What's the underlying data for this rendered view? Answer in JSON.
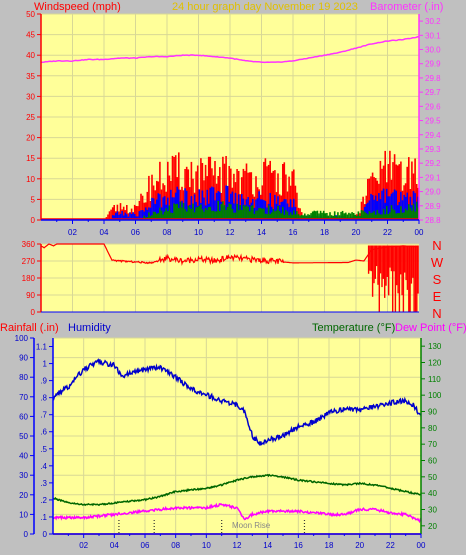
{
  "header": {
    "windspeed_label": "Windspeed (mph)",
    "title": "24 hour graph day   November 19 2023",
    "barometer_label": "Barometer (.in)"
  },
  "footer": {
    "rainfall_label": "Rainfall (.in)",
    "humidity_label": "Humidity",
    "temperature_label": "Temperature (°F)",
    "dewpoint_label": "Dew Point (°F)",
    "moonrise_label": "Moon Rise"
  },
  "colors": {
    "panel_bg": "#ffff99",
    "grid": "#d8d896",
    "windspeed": "#ff0000",
    "gust_mid": "#0000ff",
    "gust_low": "#008000",
    "barometer": "#ff33ff",
    "humidity": "#0000cc",
    "temperature": "#006600",
    "dewpoint": "#ff00ff",
    "rain_axis": "#0000ff",
    "temp_axis": "#008000",
    "title": "#e0c000"
  },
  "chart_data": [
    {
      "type": "bar",
      "name": "wind-barometer",
      "x_ticks": [
        "02",
        "04",
        "06",
        "08",
        "10",
        "12",
        "14",
        "16",
        "18",
        "20",
        "22",
        "00"
      ],
      "xlim": [
        0,
        24
      ],
      "y_left": {
        "label": "Windspeed (mph)",
        "ticks": [
          0,
          5,
          10,
          15,
          20,
          25,
          30,
          35,
          40,
          45,
          50
        ],
        "ylim": [
          0,
          50
        ]
      },
      "y_right": {
        "label": "Barometer (.in)",
        "ticks": [
          28.8,
          28.9,
          29.0,
          29.1,
          29.2,
          29.3,
          29.4,
          29.5,
          29.6,
          29.7,
          29.8,
          29.9,
          30.0,
          30.1,
          30.2
        ],
        "ylim": [
          28.8,
          30.25
        ]
      },
      "wind_max": [
        [
          0,
          0
        ],
        [
          4,
          0
        ],
        [
          4.5,
          3
        ],
        [
          5,
          4
        ],
        [
          6,
          3
        ],
        [
          6.5,
          7
        ],
        [
          7,
          11
        ],
        [
          8,
          13
        ],
        [
          9,
          14
        ],
        [
          10,
          13
        ],
        [
          11,
          13
        ],
        [
          12,
          14
        ],
        [
          13,
          12
        ],
        [
          14,
          13
        ],
        [
          15,
          12
        ],
        [
          16,
          12
        ],
        [
          16.3,
          3
        ],
        [
          16.8,
          0
        ],
        [
          19.8,
          0
        ],
        [
          20.2,
          3
        ],
        [
          21,
          12
        ],
        [
          22,
          15
        ],
        [
          23,
          12
        ],
        [
          24,
          16
        ]
      ],
      "wind_mid": [
        [
          4.5,
          1.5
        ],
        [
          5,
          2
        ],
        [
          6,
          1.5
        ],
        [
          6.5,
          3
        ],
        [
          7,
          5
        ],
        [
          8,
          7
        ],
        [
          9,
          7
        ],
        [
          10,
          7
        ],
        [
          11,
          7
        ],
        [
          12,
          7
        ],
        [
          13,
          6
        ],
        [
          14,
          6
        ],
        [
          15,
          5
        ],
        [
          16,
          5
        ],
        [
          16.3,
          1
        ],
        [
          20.2,
          1
        ],
        [
          21,
          6
        ],
        [
          22,
          8
        ],
        [
          23,
          6
        ],
        [
          24,
          8
        ]
      ],
      "wind_low": [
        [
          6.5,
          1
        ],
        [
          7,
          2
        ],
        [
          8,
          3
        ],
        [
          9,
          4
        ],
        [
          10,
          4
        ],
        [
          11,
          4
        ],
        [
          12,
          4
        ],
        [
          13,
          3
        ],
        [
          14,
          3
        ],
        [
          15,
          3
        ],
        [
          16,
          2
        ],
        [
          21,
          2
        ],
        [
          22,
          3
        ],
        [
          23,
          3
        ],
        [
          24,
          4
        ]
      ],
      "barometer": [
        [
          0,
          29.91
        ],
        [
          1,
          29.92
        ],
        [
          2,
          29.92
        ],
        [
          3,
          29.93
        ],
        [
          4,
          29.93
        ],
        [
          5,
          29.94
        ],
        [
          6,
          29.94
        ],
        [
          7,
          29.95
        ],
        [
          8,
          29.95
        ],
        [
          9,
          29.96
        ],
        [
          10,
          29.96
        ],
        [
          11,
          29.95
        ],
        [
          12,
          29.94
        ],
        [
          13,
          29.92
        ],
        [
          14,
          29.91
        ],
        [
          15,
          29.91
        ],
        [
          16,
          29.92
        ],
        [
          17,
          29.94
        ],
        [
          18,
          29.96
        ],
        [
          19,
          29.98
        ],
        [
          20,
          30.01
        ],
        [
          21,
          30.04
        ],
        [
          22,
          30.06
        ],
        [
          23,
          30.07
        ],
        [
          24,
          30.09
        ]
      ]
    },
    {
      "type": "line",
      "name": "wind-direction",
      "xlim": [
        0,
        24
      ],
      "y_ticks": [
        0,
        90,
        180,
        270,
        360
      ],
      "ylim": [
        0,
        360
      ],
      "direction_letters": [
        "N",
        "W",
        "S",
        "E",
        "N"
      ],
      "direction": [
        [
          0,
          350
        ],
        [
          0.2,
          340
        ],
        [
          0.5,
          360
        ],
        [
          0.8,
          350
        ],
        [
          1,
          360
        ],
        [
          4,
          360
        ],
        [
          4.5,
          275
        ],
        [
          5,
          270
        ],
        [
          6,
          265
        ],
        [
          7,
          260
        ],
        [
          8,
          285
        ],
        [
          9,
          270
        ],
        [
          10,
          280
        ],
        [
          11,
          270
        ],
        [
          12,
          290
        ],
        [
          13,
          280
        ],
        [
          14,
          275
        ],
        [
          15,
          268
        ],
        [
          16,
          260
        ],
        [
          19.5,
          262
        ],
        [
          20,
          275
        ],
        [
          20.5,
          270
        ],
        [
          21,
          330
        ],
        [
          22,
          345
        ],
        [
          23,
          350
        ],
        [
          24,
          345
        ]
      ]
    },
    {
      "type": "line",
      "name": "temp-humidity-rain",
      "xlim": [
        0,
        24
      ],
      "y_humidity": {
        "label": "Humidity",
        "ticks": [
          0,
          10,
          20,
          30,
          40,
          50,
          60,
          70,
          80,
          90,
          100
        ],
        "ylim": [
          0,
          100
        ]
      },
      "y_rainfall": {
        "label": "Rainfall (.in)",
        "ticks": [
          0,
          0.1,
          0.2,
          0.3,
          0.4,
          0.5,
          0.6,
          0.7,
          0.8,
          0.9,
          1.0,
          1.1
        ],
        "ylim": [
          0,
          1.15
        ]
      },
      "y_temperature": {
        "label": "Temperature (°F)",
        "ticks": [
          20,
          30,
          40,
          50,
          60,
          70,
          80,
          90,
          100,
          110,
          120,
          130
        ],
        "ylim": [
          15,
          135
        ]
      },
      "rainfall": [
        [
          0,
          0
        ],
        [
          24,
          0
        ]
      ],
      "humidity": [
        [
          0,
          70
        ],
        [
          1,
          75
        ],
        [
          2,
          84
        ],
        [
          3,
          88
        ],
        [
          4,
          86
        ],
        [
          4.5,
          80
        ],
        [
          5,
          82
        ],
        [
          6,
          84
        ],
        [
          7,
          85
        ],
        [
          8,
          80
        ],
        [
          9,
          74
        ],
        [
          10,
          71
        ],
        [
          11,
          68
        ],
        [
          12,
          66
        ],
        [
          12.5,
          63
        ],
        [
          13,
          50
        ],
        [
          13.5,
          46
        ],
        [
          14,
          48
        ],
        [
          15,
          50
        ],
        [
          16,
          55
        ],
        [
          17,
          57
        ],
        [
          18,
          62
        ],
        [
          19,
          64
        ],
        [
          20,
          63
        ],
        [
          21,
          65
        ],
        [
          22,
          67
        ],
        [
          23,
          68
        ],
        [
          23.5,
          66
        ],
        [
          24,
          60
        ]
      ],
      "temperature": [
        [
          0,
          37
        ],
        [
          1,
          34
        ],
        [
          2,
          33
        ],
        [
          3,
          33
        ],
        [
          4,
          34
        ],
        [
          5,
          35
        ],
        [
          6,
          36
        ],
        [
          7,
          38
        ],
        [
          8,
          41
        ],
        [
          9,
          42
        ],
        [
          10,
          43
        ],
        [
          11,
          45
        ],
        [
          12,
          48
        ],
        [
          13,
          50
        ],
        [
          14,
          51
        ],
        [
          15,
          50
        ],
        [
          16,
          48
        ],
        [
          17,
          47
        ],
        [
          18,
          46
        ],
        [
          19,
          45
        ],
        [
          20,
          46
        ],
        [
          21,
          45
        ],
        [
          22,
          43
        ],
        [
          23,
          41
        ],
        [
          24,
          39
        ]
      ],
      "dewpoint": [
        [
          0,
          25
        ],
        [
          1,
          25
        ],
        [
          2,
          25
        ],
        [
          3,
          26
        ],
        [
          4,
          27
        ],
        [
          5,
          28
        ],
        [
          6,
          29
        ],
        [
          7,
          30
        ],
        [
          8,
          31
        ],
        [
          9,
          31
        ],
        [
          10,
          31
        ],
        [
          11,
          33
        ],
        [
          12,
          31
        ],
        [
          12.5,
          24
        ],
        [
          13,
          27
        ],
        [
          14,
          29
        ],
        [
          15,
          29
        ],
        [
          16,
          29
        ],
        [
          17,
          28
        ],
        [
          18,
          27
        ],
        [
          19,
          27
        ],
        [
          20,
          30
        ],
        [
          21,
          30
        ],
        [
          22,
          28
        ],
        [
          23,
          27
        ],
        [
          24,
          23
        ]
      ],
      "moon_markers": [
        4.3,
        6.6,
        11.0,
        16.4
      ]
    }
  ]
}
